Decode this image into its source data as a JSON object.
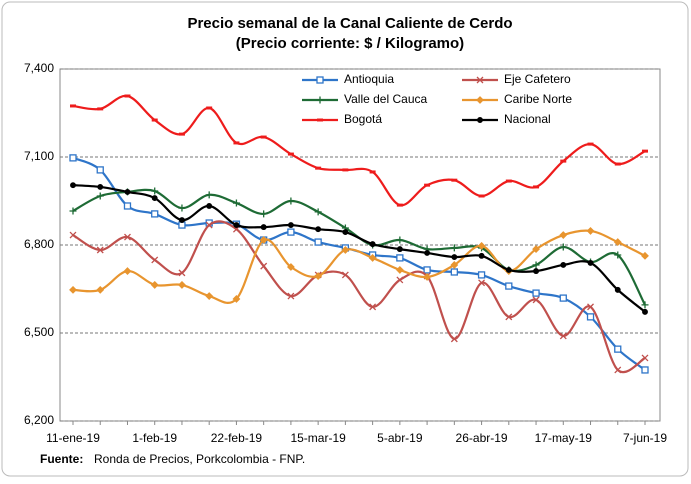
{
  "chart_data": {
    "type": "line",
    "title": "Precio semanal de la Canal Caliente de Cerdo",
    "subtitle": "(Precio corriente: $ / Kilogramo)",
    "source_label": "Fuente:",
    "source": "Ronda de Precios, Porkcolombia  - FNP.",
    "categories": [
      "11-ene-19",
      null,
      null,
      "1-feb-19",
      null,
      null,
      "22-feb-19",
      null,
      null,
      "15-mar-19",
      null,
      null,
      "5-abr-19",
      null,
      null,
      "26-abr-19",
      null,
      null,
      "17-may-19",
      null,
      null,
      "7-jun-19"
    ],
    "ylim": [
      6200,
      7400
    ],
    "yticks": [
      {
        "value": 6200,
        "label": "6,200"
      },
      {
        "value": 6500,
        "label": "6,500"
      },
      {
        "value": 6800,
        "label": "6,800"
      },
      {
        "value": 7100,
        "label": "7,100"
      },
      {
        "value": 7400,
        "label": "7,400"
      }
    ],
    "grid": true,
    "series": [
      {
        "name": "Antioquia",
        "color": "#2e75c9",
        "marker": "square",
        "values": [
          7097,
          7056,
          6933,
          6906,
          6868,
          6875,
          6871,
          6817,
          6844,
          6810,
          6790,
          6766,
          6756,
          6715,
          6708,
          6698,
          6660,
          6636,
          6619,
          6555,
          6445,
          6374
        ]
      },
      {
        "name": "Eje Cafetero",
        "color": "#c0504d",
        "marker": "x",
        "values": [
          6834,
          6783,
          6827,
          6749,
          6705,
          6868,
          6854,
          6728,
          6626,
          6698,
          6698,
          6589,
          6681,
          6694,
          6480,
          6671,
          6555,
          6613,
          6490,
          6589,
          6374,
          6415
        ]
      },
      {
        "name": "Valle del Cauca",
        "color": "#1e6b35",
        "marker": "plus",
        "values": [
          6916,
          6967,
          6981,
          6984,
          6926,
          6971,
          6943,
          6906,
          6950,
          6913,
          6858,
          6800,
          6817,
          6786,
          6790,
          6790,
          6715,
          6732,
          6793,
          6742,
          6766,
          6596
        ]
      },
      {
        "name": "Caribe Norte",
        "color": "#e8952f",
        "marker": "diamond",
        "values": [
          6647,
          6647,
          6711,
          6664,
          6664,
          6626,
          6616,
          6817,
          6725,
          6694,
          6783,
          6756,
          6715,
          6691,
          6732,
          6797,
          6711,
          6786,
          6834,
          6848,
          6810,
          6763
        ]
      },
      {
        "name": "Bogotá",
        "color": "#ee1c1c",
        "marker": "dash",
        "values": [
          7274,
          7264,
          7308,
          7226,
          7178,
          7267,
          7148,
          7168,
          7110,
          7062,
          7056,
          7049,
          6936,
          7004,
          7021,
          6967,
          7018,
          6998,
          7086,
          7144,
          7076,
          7120
        ]
      },
      {
        "name": "Nacional",
        "color": "#000000",
        "marker": "dot",
        "values": [
          7004,
          6998,
          6981,
          6960,
          6885,
          6933,
          6868,
          6861,
          6868,
          6854,
          6844,
          6803,
          6786,
          6773,
          6759,
          6763,
          6715,
          6711,
          6732,
          6739,
          6647,
          6572
        ]
      }
    ]
  }
}
